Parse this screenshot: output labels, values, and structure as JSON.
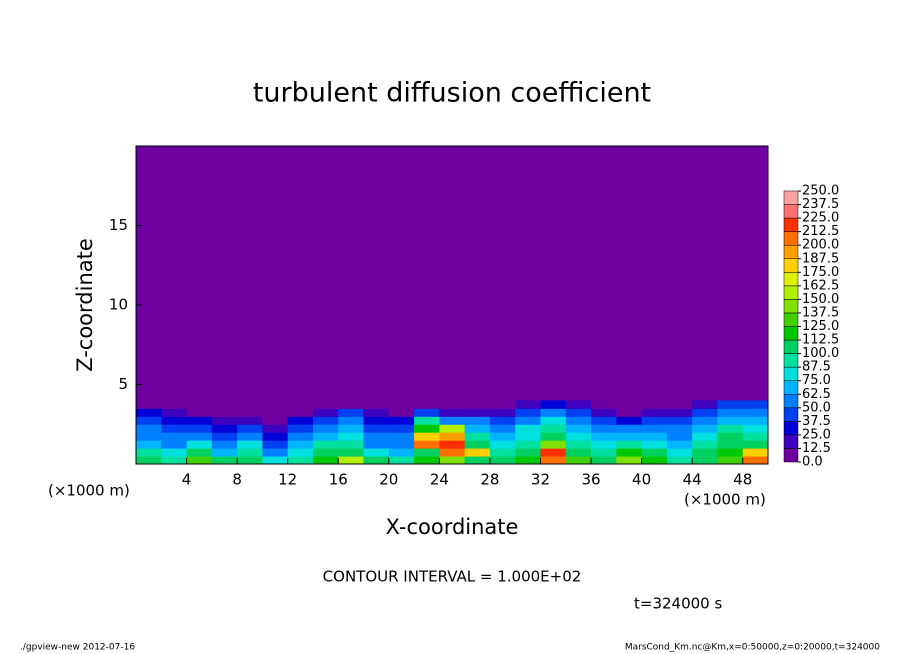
{
  "chart_data": {
    "type": "contour",
    "title": "turbulent diffusion coefficient",
    "x_label": "X-coordinate",
    "y_label": "Z-coordinate",
    "x_unit_left": "(×1000 m)",
    "x_unit_right": "(×1000 m)",
    "contour_interval": "CONTOUR INTERVAL = 1.000E+02",
    "time_label": "t=324000 s",
    "footer_left": "./gpview-new  2012-07-16",
    "footer_right": "MarsCond_Km.nc@Km,x=0:50000,z=0:20000,t=324000",
    "xlim": [
      0,
      50
    ],
    "xticks": [
      4,
      8,
      12,
      16,
      20,
      24,
      28,
      32,
      36,
      40,
      44,
      48
    ],
    "ylim": [
      0,
      20
    ],
    "yticks": [
      5,
      10,
      15
    ],
    "colorbar_ticks": [
      {
        "value": 0,
        "label": "0.0"
      },
      12.5,
      {
        "value": 25,
        "label": "25.0"
      },
      37.5,
      {
        "value": 50,
        "label": "50.0"
      },
      62.5,
      {
        "value": 75,
        "label": "75.0"
      },
      87.5,
      {
        "value": 100,
        "label": "100.0"
      },
      112.5,
      {
        "value": 125,
        "label": "125.0"
      },
      137.5,
      {
        "value": 150,
        "label": "150.0"
      },
      162.5,
      {
        "value": 175,
        "label": "175.0"
      },
      187.5,
      {
        "value": 200,
        "label": "200.0"
      },
      212.5,
      {
        "value": 225,
        "label": "225.0"
      },
      237.5,
      {
        "value": 250,
        "label": "250.0"
      }
    ],
    "colors": [
      "#6e00a0",
      "#4000c0",
      "#0000d8",
      "#0040f0",
      "#0080ff",
      "#00b4ff",
      "#00e0e0",
      "#00e0a0",
      "#00d060",
      "#00c800",
      "#40d000",
      "#80e000",
      "#b0f000",
      "#e0f000",
      "#ffd000",
      "#ffa000",
      "#ff7000",
      "#ff3000",
      "#ff7070",
      "#ffa0a0"
    ],
    "x_centers": [
      1,
      3,
      5,
      7,
      9,
      11,
      13,
      15,
      17,
      19,
      21,
      23,
      25,
      27,
      29,
      31,
      33,
      35,
      37,
      39,
      41,
      43,
      45,
      47,
      49
    ],
    "z_centers": [
      0.25,
      0.75,
      1.25,
      1.75,
      2.25,
      2.75,
      3.25,
      3.75
    ],
    "z_values": [
      [
        110,
        90,
        130,
        100,
        110,
        80,
        90,
        120,
        150,
        100,
        90,
        120,
        140,
        110,
        100,
        120,
        200,
        130,
        110,
        140,
        120,
        90,
        110,
        130,
        210
      ],
      [
        90,
        80,
        100,
        70,
        90,
        60,
        80,
        100,
        110,
        80,
        70,
        110,
        210,
        180,
        90,
        100,
        220,
        100,
        90,
        120,
        100,
        80,
        100,
        120,
        180
      ],
      [
        70,
        60,
        75,
        50,
        80,
        40,
        70,
        90,
        90,
        60,
        60,
        200,
        220,
        110,
        80,
        90,
        140,
        90,
        80,
        90,
        80,
        70,
        90,
        110,
        110
      ],
      [
        60,
        50,
        60,
        40,
        60,
        30,
        60,
        70,
        80,
        50,
        50,
        180,
        190,
        90,
        70,
        80,
        100,
        80,
        70,
        70,
        70,
        60,
        80,
        100,
        90
      ],
      [
        50,
        40,
        40,
        30,
        40,
        20,
        40,
        60,
        70,
        40,
        40,
        120,
        150,
        70,
        60,
        80,
        90,
        70,
        60,
        50,
        60,
        50,
        70,
        90,
        80
      ],
      [
        40,
        30,
        25,
        20,
        20,
        10,
        30,
        40,
        60,
        30,
        30,
        90,
        60,
        50,
        40,
        60,
        80,
        60,
        40,
        30,
        40,
        40,
        60,
        70,
        70
      ],
      [
        30,
        20,
        10,
        10,
        10,
        0,
        10,
        20,
        40,
        20,
        10,
        40,
        20,
        20,
        20,
        40,
        60,
        40,
        20,
        10,
        20,
        20,
        40,
        60,
        60
      ],
      [
        0,
        0,
        0,
        0,
        0,
        0,
        0,
        0,
        10,
        0,
        0,
        0,
        0,
        0,
        0,
        20,
        30,
        20,
        0,
        0,
        0,
        0,
        20,
        40,
        40
      ]
    ]
  }
}
